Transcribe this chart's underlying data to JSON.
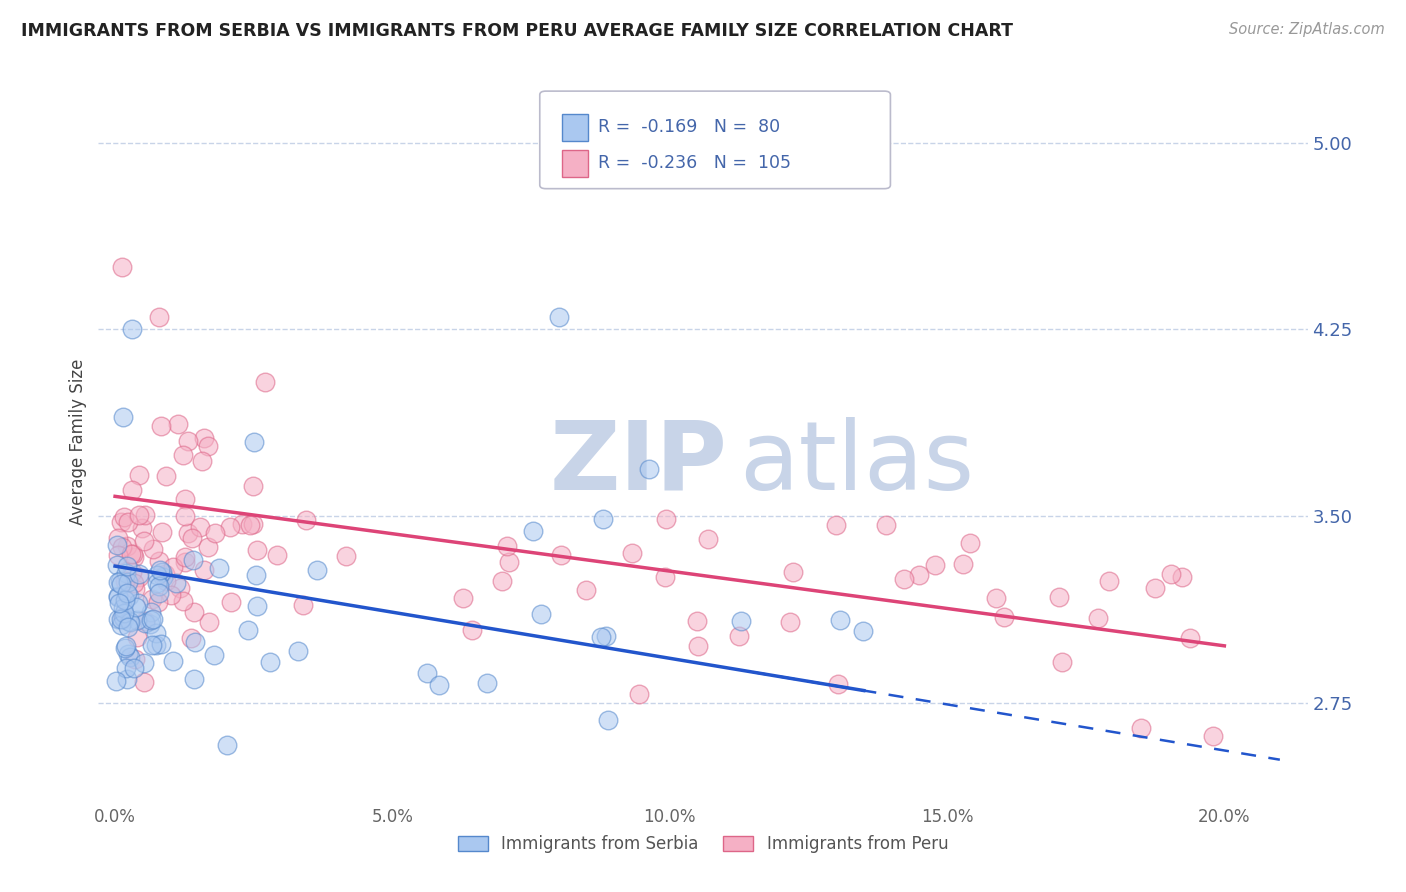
{
  "title": "IMMIGRANTS FROM SERBIA VS IMMIGRANTS FROM PERU AVERAGE FAMILY SIZE CORRELATION CHART",
  "source": "Source: ZipAtlas.com",
  "ylabel": "Average Family Size",
  "xlabel_ticks": [
    "0.0%",
    "5.0%",
    "10.0%",
    "15.0%",
    "20.0%"
  ],
  "xlabel_vals": [
    0.0,
    5.0,
    10.0,
    15.0,
    20.0
  ],
  "yticks": [
    2.75,
    3.5,
    4.25,
    5.0
  ],
  "xlim": [
    -0.3,
    21.5
  ],
  "ylim": [
    2.35,
    5.25
  ],
  "serbia_R": -0.169,
  "serbia_N": 80,
  "peru_R": -0.236,
  "peru_N": 105,
  "serbia_color": "#aac8f0",
  "serbia_edge_color": "#5588cc",
  "peru_color": "#f5b0c5",
  "peru_edge_color": "#dd6688",
  "background_color": "#ffffff",
  "grid_color": "#c8d4e8",
  "title_color": "#222222",
  "source_color": "#999999",
  "axis_tick_color": "#4466aa",
  "watermark_zip": "ZIP",
  "watermark_atlas": "atlas",
  "watermark_color": "#c8d4e8",
  "serbia_line_color": "#2255cc",
  "peru_line_color": "#dd4477",
  "serbia_line_y0": 3.3,
  "serbia_line_y20": 2.56,
  "peru_line_y0": 3.58,
  "peru_line_y20": 2.98,
  "serbia_solid_end": 13.5,
  "serbia_dash_start": 11.5
}
